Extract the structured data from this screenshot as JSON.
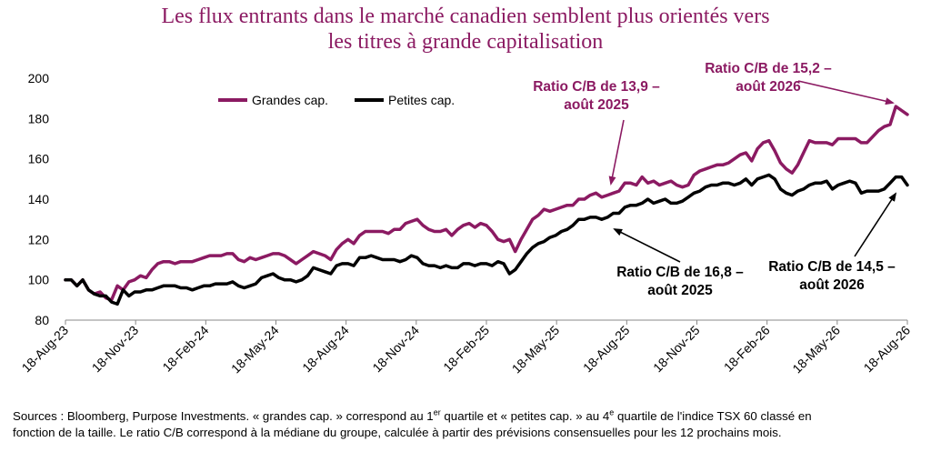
{
  "title_lines": [
    "Les flux entrants dans le marché canadien semblent plus orientés vers",
    "les titres à grande capitalisation"
  ],
  "footnote": {
    "part1": "Sources : Bloomberg, Purpose Investments. « grandes cap. » correspond au 1",
    "sup1": "er",
    "part2": " quartile et « petites cap. » au 4",
    "sup2": "e",
    "part3": " quartile de l'indice TSX 60 classé en",
    "line2": "fonction de la taille. Le ratio C/B correspond à la médiane du groupe, calculée à partir des prévisions consensuelles pour les 12 prochains mois."
  },
  "colors": {
    "large": "#8b1a62",
    "small": "#000000"
  },
  "chart_data": {
    "type": "line",
    "title": "Les flux entrants dans le marché canadien semblent plus orientés vers les titres à grande capitalisation",
    "xlabel": "",
    "ylabel": "",
    "ylim": [
      80,
      200
    ],
    "yticks": [
      "80",
      "100",
      "120",
      "140",
      "160",
      "180",
      "200"
    ],
    "xticks": [
      "18-Aug-23",
      "18-Nov-23",
      "18-Feb-24",
      "18-May-24",
      "18-Aug-24",
      "18-Nov-24",
      "18-Feb-25",
      "18-May-25",
      "18-Aug-25",
      "18-Nov-25",
      "18-Feb-26",
      "18-May-26",
      "18-Aug-26"
    ],
    "grid": false,
    "legend_position": "top-left",
    "series": [
      {
        "name": "Grandes cap.",
        "color": "#8b1a62",
        "values": [
          100,
          100,
          97,
          100,
          95,
          93,
          94,
          91,
          90,
          97,
          95,
          99,
          100,
          102,
          101,
          105,
          108,
          109,
          109,
          108,
          109,
          109,
          109,
          110,
          111,
          112,
          112,
          112,
          113,
          113,
          110,
          109,
          111,
          110,
          111,
          112,
          113,
          113,
          112,
          110,
          108,
          110,
          112,
          114,
          113,
          112,
          110,
          115,
          118,
          120,
          118,
          122,
          124,
          124,
          124,
          124,
          123,
          125,
          125,
          128,
          129,
          130,
          127,
          125,
          124,
          124,
          125,
          122,
          125,
          127,
          128,
          126,
          128,
          127,
          124,
          120,
          119,
          120,
          114,
          120,
          125,
          130,
          132,
          135,
          134,
          135,
          136,
          137,
          137,
          140,
          140,
          142,
          143,
          141,
          142,
          143,
          144,
          148,
          148,
          147,
          151,
          148,
          149,
          147,
          148,
          149,
          147,
          146,
          147,
          152,
          154,
          155,
          156,
          157,
          157,
          158,
          160,
          162,
          163,
          159,
          165,
          168,
          169,
          164,
          158,
          155,
          153,
          157,
          163,
          169,
          168,
          168,
          168,
          167,
          170,
          170,
          170,
          170,
          168,
          168,
          171,
          174,
          176,
          177,
          186,
          184,
          182
        ]
      },
      {
        "name": "Petites cap.",
        "color": "#000000",
        "values": [
          100,
          100,
          97,
          100,
          95,
          93,
          92,
          92,
          89,
          88,
          95,
          92,
          94,
          94,
          95,
          95,
          96,
          97,
          97,
          97,
          96,
          96,
          95,
          96,
          97,
          97,
          98,
          98,
          98,
          99,
          97,
          96,
          97,
          98,
          101,
          102,
          103,
          101,
          100,
          100,
          99,
          100,
          102,
          106,
          105,
          104,
          103,
          107,
          108,
          108,
          107,
          111,
          111,
          112,
          111,
          110,
          110,
          110,
          109,
          110,
          112,
          111,
          108,
          107,
          107,
          106,
          107,
          106,
          106,
          108,
          108,
          107,
          108,
          108,
          107,
          109,
          108,
          103,
          105,
          109,
          113,
          116,
          118,
          119,
          121,
          122,
          124,
          125,
          127,
          130,
          130,
          131,
          131,
          130,
          131,
          133,
          133,
          136,
          137,
          137,
          138,
          140,
          138,
          139,
          140,
          138,
          138,
          139,
          141,
          143,
          144,
          146,
          147,
          147,
          148,
          148,
          147,
          148,
          150,
          147,
          150,
          151,
          152,
          150,
          145,
          143,
          142,
          144,
          145,
          147,
          148,
          148,
          149,
          145,
          147,
          148,
          149,
          148,
          143,
          144,
          144,
          144,
          145,
          148,
          151,
          151,
          147
        ]
      }
    ],
    "annotations": [
      {
        "series": "Grandes cap.",
        "index": 98,
        "lines": [
          "Ratio C/B de 13,9 –",
          "août 2025"
        ]
      },
      {
        "series": "Grandes cap.",
        "index": 144,
        "lines": [
          "Ratio C/B de 15,2 –",
          "août 2026"
        ]
      },
      {
        "series": "Petites cap.",
        "index": 95,
        "lines": [
          "Ratio C/B de 16,8 –",
          "août 2025"
        ]
      },
      {
        "series": "Petites cap.",
        "index": 144,
        "lines": [
          "Ratio C/B de 14,5 –",
          "août 2026"
        ]
      }
    ]
  }
}
